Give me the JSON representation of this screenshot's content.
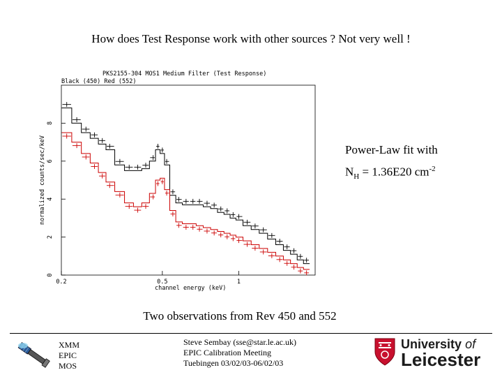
{
  "slide": {
    "title": "How does Test Response work with other sources ? Not very well !",
    "fit_note_line1": "Power-Law fit with",
    "fit_note_nh": "N",
    "fit_note_sub": "H",
    "fit_note_value": " = 1.36E20 cm",
    "fit_note_sup": "-2",
    "caption": "Two observations from Rev 450 and 552"
  },
  "footer": {
    "xmm_lines": [
      "XMM",
      "EPIC",
      "MOS"
    ],
    "contact_lines": [
      "Steve Sembay (sse@star.le.ac.uk)",
      "EPIC Calibration Meeting",
      "Tuebingen 03/02/03-06/02/03"
    ],
    "university_line1": "University",
    "university_of": "of",
    "university_line2": "Leicester"
  },
  "chart_data": {
    "type": "line",
    "title": "PKS2155-304  MOS1  Medium Filter  (Test Response)",
    "subtitle": "Black (450)  Red (552)",
    "xlabel": "channel energy (keV)",
    "ylabel": "normalized counts/sec/keV",
    "xscale": "log",
    "xlim": [
      0.2,
      2.0
    ],
    "ylim": [
      0,
      10
    ],
    "x_ticks": [
      0.2,
      0.5,
      1
    ],
    "x_tick_labels": [
      "0.2",
      "0.5",
      "1"
    ],
    "y_ticks": [
      0,
      2,
      4,
      6,
      8
    ],
    "y_tick_labels": [
      "0",
      "2",
      "4",
      "6",
      "8"
    ],
    "series": [
      {
        "name": "Black (450)",
        "color": "#000000",
        "x": [
          0.21,
          0.23,
          0.25,
          0.27,
          0.29,
          0.31,
          0.34,
          0.37,
          0.4,
          0.43,
          0.46,
          0.48,
          0.5,
          0.52,
          0.55,
          0.58,
          0.62,
          0.66,
          0.7,
          0.75,
          0.8,
          0.85,
          0.9,
          0.95,
          1.0,
          1.08,
          1.16,
          1.25,
          1.35,
          1.45,
          1.55,
          1.65,
          1.75,
          1.85
        ],
        "y": [
          8.8,
          8.0,
          7.5,
          7.2,
          6.9,
          6.6,
          5.8,
          5.5,
          5.5,
          5.6,
          6.0,
          6.6,
          6.4,
          5.8,
          4.2,
          3.8,
          3.7,
          3.7,
          3.7,
          3.6,
          3.5,
          3.3,
          3.2,
          3.0,
          2.9,
          2.6,
          2.4,
          2.2,
          1.9,
          1.6,
          1.3,
          1.1,
          0.8,
          0.6
        ]
      },
      {
        "name": "Red (552)",
        "color": "#cc0000",
        "x": [
          0.21,
          0.23,
          0.25,
          0.27,
          0.29,
          0.31,
          0.34,
          0.37,
          0.4,
          0.43,
          0.46,
          0.48,
          0.5,
          0.52,
          0.55,
          0.58,
          0.62,
          0.66,
          0.7,
          0.75,
          0.8,
          0.85,
          0.9,
          0.95,
          1.0,
          1.08,
          1.16,
          1.25,
          1.35,
          1.45,
          1.55,
          1.65,
          1.75,
          1.85
        ],
        "y": [
          7.5,
          7.0,
          6.4,
          5.9,
          5.4,
          4.9,
          4.4,
          3.8,
          3.6,
          3.8,
          4.3,
          5.0,
          5.1,
          4.5,
          3.4,
          2.8,
          2.7,
          2.7,
          2.6,
          2.5,
          2.4,
          2.3,
          2.2,
          2.1,
          2.0,
          1.8,
          1.6,
          1.4,
          1.2,
          1.0,
          0.8,
          0.6,
          0.4,
          0.3
        ]
      }
    ]
  },
  "colors": {
    "black_series": "#000000",
    "red_series": "#cc0000",
    "logo_red": "#c8102e"
  },
  "icons": {
    "satellite": "satellite-icon",
    "university_crest": "crest-icon"
  }
}
